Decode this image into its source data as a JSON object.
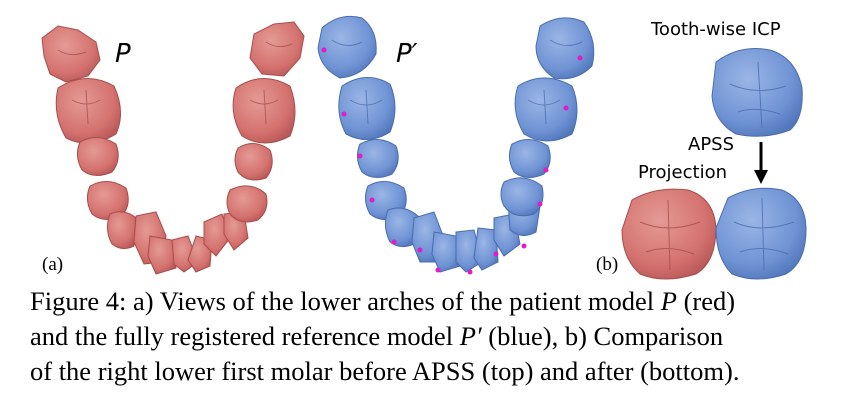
{
  "figure": {
    "panel_a": {
      "label": "(a)",
      "red_arch_label": "P",
      "blue_arch_label": "P′",
      "colors": {
        "red_tooth": "#d4726f",
        "red_edge": "#a84e4b",
        "blue_tooth": "#6f93d4",
        "blue_edge": "#4a6db0",
        "landmark": "#e21cc8"
      }
    },
    "panel_b": {
      "label": "(b)",
      "title": "Tooth-wise ICP",
      "arrow_label_line1": "APSS",
      "arrow_label_line2": "Projection"
    }
  },
  "caption": {
    "line1_a": "Figure 4: a) Views of the lower arches of the patient model ",
    "line1_sym": "P",
    "line1_b": " (red)",
    "line2_a": "and the fully registered reference model ",
    "line2_sym": "P′",
    "line2_b": " (blue), b)  Comparison",
    "line3": "of the right lower first molar before APSS (top) and after (bottom)."
  }
}
